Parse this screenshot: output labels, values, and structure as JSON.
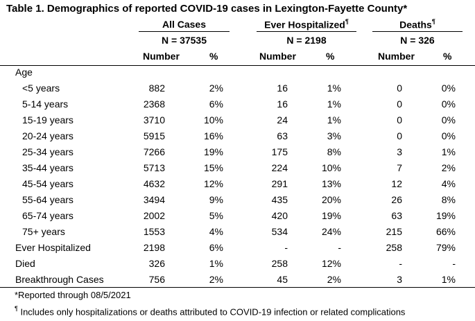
{
  "title": "Table 1. Demographics of reported COVID-19 cases in Lexington-Fayette County*",
  "groups": {
    "all": {
      "label": "All Cases",
      "n": "N =  37535"
    },
    "hosp": {
      "label": "Ever Hospitalized",
      "mark": "¶",
      "n": "N =  2198"
    },
    "deaths": {
      "label": "Deaths",
      "mark": "¶",
      "n": "N =  326"
    }
  },
  "subheaders": {
    "number": "Number",
    "percent": "%"
  },
  "age_label": "Age",
  "rows": [
    {
      "label": "<5 years",
      "c1": "882",
      "c2": "2%",
      "c3": "16",
      "c4": "1%",
      "c5": "0",
      "c6": "0%"
    },
    {
      "label": "5-14 years",
      "c1": "2368",
      "c2": "6%",
      "c3": "16",
      "c4": "1%",
      "c5": "0",
      "c6": "0%"
    },
    {
      "label": "15-19 years",
      "c1": "3710",
      "c2": "10%",
      "c3": "24",
      "c4": "1%",
      "c5": "0",
      "c6": "0%"
    },
    {
      "label": "20-24 years",
      "c1": "5915",
      "c2": "16%",
      "c3": "63",
      "c4": "3%",
      "c5": "0",
      "c6": "0%"
    },
    {
      "label": "25-34 years",
      "c1": "7266",
      "c2": "19%",
      "c3": "175",
      "c4": "8%",
      "c5": "3",
      "c6": "1%"
    },
    {
      "label": "35-44 years",
      "c1": "5713",
      "c2": "15%",
      "c3": "224",
      "c4": "10%",
      "c5": "7",
      "c6": "2%"
    },
    {
      "label": "45-54 years",
      "c1": "4632",
      "c2": "12%",
      "c3": "291",
      "c4": "13%",
      "c5": "12",
      "c6": "4%"
    },
    {
      "label": "55-64 years",
      "c1": "3494",
      "c2": "9%",
      "c3": "435",
      "c4": "20%",
      "c5": "26",
      "c6": "8%"
    },
    {
      "label": "65-74 years",
      "c1": "2002",
      "c2": "5%",
      "c3": "420",
      "c4": "19%",
      "c5": "63",
      "c6": "19%"
    },
    {
      "label": "75+ years",
      "c1": "1553",
      "c2": "4%",
      "c3": "534",
      "c4": "24%",
      "c5": "215",
      "c6": "66%"
    },
    {
      "label": "Ever Hospitalized",
      "c1": "2198",
      "c2": "6%",
      "c3": "-",
      "c4": "-",
      "c5": "258",
      "c6": "79%"
    },
    {
      "label": "Died",
      "c1": "326",
      "c2": "1%",
      "c3": "258",
      "c4": "12%",
      "c5": "-",
      "c6": "-"
    },
    {
      "label": "Breakthrough Cases",
      "c1": "756",
      "c2": "2%",
      "c3": "45",
      "c4": "2%",
      "c5": "3",
      "c6": "1%"
    }
  ],
  "footnotes": {
    "reported": "*Reported through 08/5/2021",
    "mark": "¶",
    "includes": " Includes only hospitalizations or deaths attributed to COVID-19 infection or related complications"
  }
}
